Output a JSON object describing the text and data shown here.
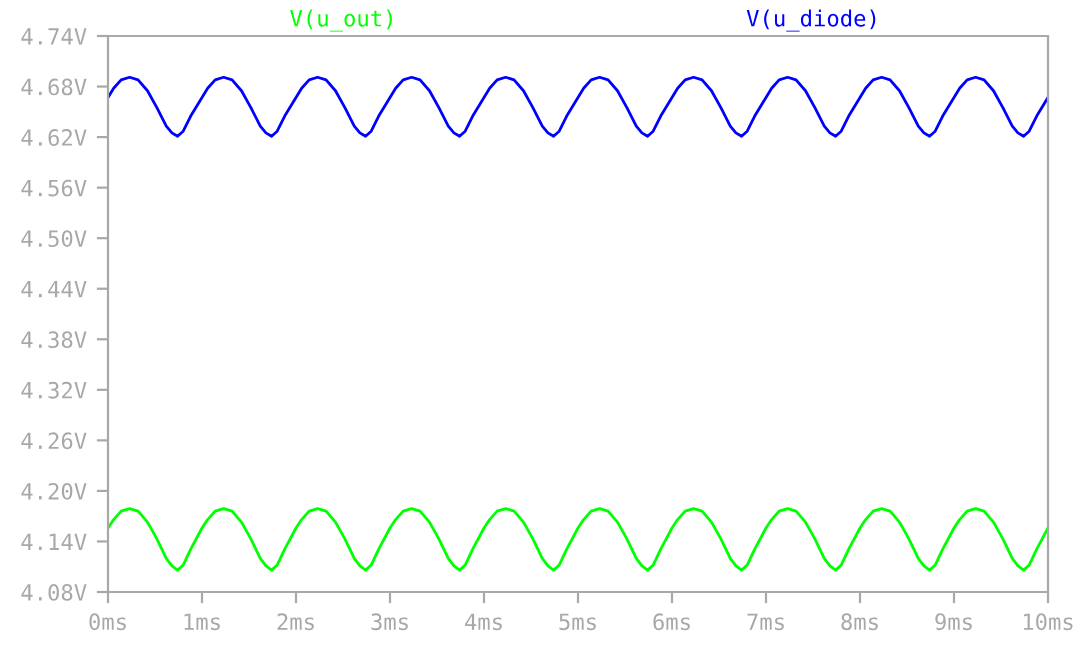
{
  "chart_data": {
    "type": "line",
    "legend": "top",
    "grid": false,
    "line_style": "solid",
    "marker": "none",
    "x": [
      0,
      0.06,
      0.14,
      0.23,
      0.32,
      0.42,
      0.52,
      0.62,
      0.68,
      0.74,
      0.8,
      0.88,
      1,
      1.06,
      1.14,
      1.23,
      1.32,
      1.42,
      1.52,
      1.62,
      1.68,
      1.74,
      1.8,
      1.88,
      2,
      2.06,
      2.14,
      2.23,
      2.32,
      2.42,
      2.52,
      2.62,
      2.68,
      2.74,
      2.8,
      2.88,
      3,
      3.06,
      3.14,
      3.23,
      3.32,
      3.42,
      3.52,
      3.62,
      3.68,
      3.74,
      3.8,
      3.88,
      4,
      4.06,
      4.14,
      4.23,
      4.32,
      4.42,
      4.52,
      4.62,
      4.68,
      4.74,
      4.8,
      4.88,
      5,
      5.06,
      5.14,
      5.23,
      5.32,
      5.42,
      5.52,
      5.62,
      5.68,
      5.74,
      5.8,
      5.88,
      6,
      6.06,
      6.14,
      6.23,
      6.32,
      6.42,
      6.52,
      6.62,
      6.68,
      6.74,
      6.8,
      6.88,
      7,
      7.06,
      7.14,
      7.23,
      7.32,
      7.42,
      7.52,
      7.62,
      7.68,
      7.74,
      7.8,
      7.88,
      8,
      8.06,
      8.14,
      8.23,
      8.32,
      8.42,
      8.52,
      8.62,
      8.68,
      8.74,
      8.8,
      8.88,
      9,
      9.06,
      9.14,
      9.23,
      9.32,
      9.42,
      9.52,
      9.62,
      9.68,
      9.74,
      9.8,
      9.88,
      10
    ],
    "series": [
      {
        "name": "V(u_out)",
        "color": "#00ff00",
        "values": [
          4.156,
          4.166,
          4.176,
          4.179,
          4.176,
          4.163,
          4.143,
          4.12,
          4.111,
          4.106,
          4.112,
          4.131,
          4.156,
          4.166,
          4.176,
          4.179,
          4.176,
          4.163,
          4.143,
          4.12,
          4.111,
          4.106,
          4.112,
          4.131,
          4.156,
          4.166,
          4.176,
          4.179,
          4.176,
          4.163,
          4.143,
          4.12,
          4.111,
          4.106,
          4.112,
          4.131,
          4.156,
          4.166,
          4.176,
          4.179,
          4.176,
          4.163,
          4.143,
          4.12,
          4.111,
          4.106,
          4.112,
          4.131,
          4.156,
          4.166,
          4.176,
          4.179,
          4.176,
          4.163,
          4.143,
          4.12,
          4.111,
          4.106,
          4.112,
          4.131,
          4.156,
          4.166,
          4.176,
          4.179,
          4.176,
          4.163,
          4.143,
          4.12,
          4.111,
          4.106,
          4.112,
          4.131,
          4.156,
          4.166,
          4.176,
          4.179,
          4.176,
          4.163,
          4.143,
          4.12,
          4.111,
          4.106,
          4.112,
          4.131,
          4.156,
          4.166,
          4.176,
          4.179,
          4.176,
          4.163,
          4.143,
          4.12,
          4.111,
          4.106,
          4.112,
          4.131,
          4.156,
          4.166,
          4.176,
          4.179,
          4.176,
          4.163,
          4.143,
          4.12,
          4.111,
          4.106,
          4.112,
          4.131,
          4.156,
          4.166,
          4.176,
          4.179,
          4.176,
          4.163,
          4.143,
          4.12,
          4.111,
          4.106,
          4.112,
          4.131,
          4.156
        ]
      },
      {
        "name": "V(u_diode)",
        "color": "#0000ff",
        "values": [
          4.667,
          4.678,
          4.688,
          4.691,
          4.688,
          4.675,
          4.655,
          4.633,
          4.625,
          4.621,
          4.627,
          4.645,
          4.667,
          4.678,
          4.688,
          4.691,
          4.688,
          4.675,
          4.655,
          4.633,
          4.625,
          4.621,
          4.627,
          4.645,
          4.667,
          4.678,
          4.688,
          4.691,
          4.688,
          4.675,
          4.655,
          4.633,
          4.625,
          4.621,
          4.627,
          4.645,
          4.667,
          4.678,
          4.688,
          4.691,
          4.688,
          4.675,
          4.655,
          4.633,
          4.625,
          4.621,
          4.627,
          4.645,
          4.667,
          4.678,
          4.688,
          4.691,
          4.688,
          4.675,
          4.655,
          4.633,
          4.625,
          4.621,
          4.627,
          4.645,
          4.667,
          4.678,
          4.688,
          4.691,
          4.688,
          4.675,
          4.655,
          4.633,
          4.625,
          4.621,
          4.627,
          4.645,
          4.667,
          4.678,
          4.688,
          4.691,
          4.688,
          4.675,
          4.655,
          4.633,
          4.625,
          4.621,
          4.627,
          4.645,
          4.667,
          4.678,
          4.688,
          4.691,
          4.688,
          4.675,
          4.655,
          4.633,
          4.625,
          4.621,
          4.627,
          4.645,
          4.667,
          4.678,
          4.688,
          4.691,
          4.688,
          4.675,
          4.655,
          4.633,
          4.625,
          4.621,
          4.627,
          4.645,
          4.667,
          4.678,
          4.688,
          4.691,
          4.688,
          4.675,
          4.655,
          4.633,
          4.625,
          4.621,
          4.627,
          4.645,
          4.667
        ]
      }
    ],
    "xlim": [
      0,
      10
    ],
    "xticks": [
      {
        "value": 0,
        "label": "0ms"
      },
      {
        "value": 1,
        "label": "1ms"
      },
      {
        "value": 2,
        "label": "2ms"
      },
      {
        "value": 3,
        "label": "3ms"
      },
      {
        "value": 4,
        "label": "4ms"
      },
      {
        "value": 5,
        "label": "5ms"
      },
      {
        "value": 6,
        "label": "6ms"
      },
      {
        "value": 7,
        "label": "7ms"
      },
      {
        "value": 8,
        "label": "8ms"
      },
      {
        "value": 9,
        "label": "9ms"
      },
      {
        "value": 10,
        "label": "10ms"
      }
    ],
    "ylim": [
      4.08,
      4.74
    ],
    "yticks": [
      {
        "value": 4.08,
        "label": "4.08V"
      },
      {
        "value": 4.14,
        "label": "4.14V"
      },
      {
        "value": 4.2,
        "label": "4.20V"
      },
      {
        "value": 4.26,
        "label": "4.26V"
      },
      {
        "value": 4.32,
        "label": "4.32V"
      },
      {
        "value": 4.38,
        "label": "4.38V"
      },
      {
        "value": 4.44,
        "label": "4.44V"
      },
      {
        "value": 4.5,
        "label": "4.50V"
      },
      {
        "value": 4.56,
        "label": "4.56V"
      },
      {
        "value": 4.62,
        "label": "4.62V"
      },
      {
        "value": 4.68,
        "label": "4.68V"
      },
      {
        "value": 4.74,
        "label": "4.74V"
      }
    ]
  }
}
